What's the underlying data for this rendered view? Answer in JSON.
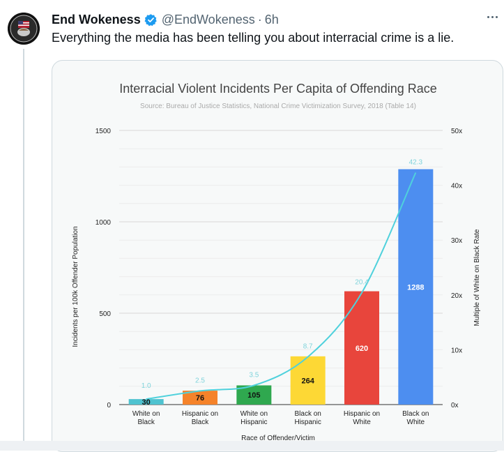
{
  "tweet": {
    "display_name": "End Wokeness",
    "handle": "@EndWokeness",
    "separator": "·",
    "time": "6h",
    "text": "Everything the media has been telling you about interracial crime is a lie.",
    "verified_color": "#1d9bf0"
  },
  "chart_data": {
    "type": "bar",
    "title": "Interracial Violent Incidents Per Capita of Offending Race",
    "subtitle": "Source: Bureau of Justice Statistics, National Crime Victimization Survey, 2018 (Table 14)",
    "xlabel": "Race of Offender/Victim",
    "ylabel": "Incidents per 100k Offender Population",
    "y2label": "Multiple of White on Black Rate",
    "ylim": [
      0,
      1500
    ],
    "y2lim": [
      0,
      50
    ],
    "yticks": [
      "0",
      "500",
      "1000",
      "1500"
    ],
    "y2ticks": [
      "0x",
      "10x",
      "20x",
      "30x",
      "40x",
      "50x"
    ],
    "categories": [
      [
        "White on",
        "Black"
      ],
      [
        "Hispanic on",
        "Black"
      ],
      [
        "White on",
        "Hispanic"
      ],
      [
        "Black on",
        "Hispanic"
      ],
      [
        "Hispanic on",
        "White"
      ],
      [
        "Black on",
        "White"
      ]
    ],
    "values": [
      30,
      76,
      105,
      264,
      620,
      1288
    ],
    "value_labels": [
      "30",
      "76",
      "105",
      "264",
      "620",
      "1288"
    ],
    "multiples": [
      1.0,
      2.5,
      3.5,
      8.7,
      20.4,
      42.3
    ],
    "multiple_labels": [
      "1.0",
      "2.5",
      "3.5",
      "8.7",
      "20.4",
      "42.3"
    ],
    "colors": [
      "#4fc3d0",
      "#f5832a",
      "#2fa84f",
      "#fdd835",
      "#e8453c",
      "#4d8ef0"
    ],
    "line_color": "#4fd1dc",
    "grid": true
  }
}
